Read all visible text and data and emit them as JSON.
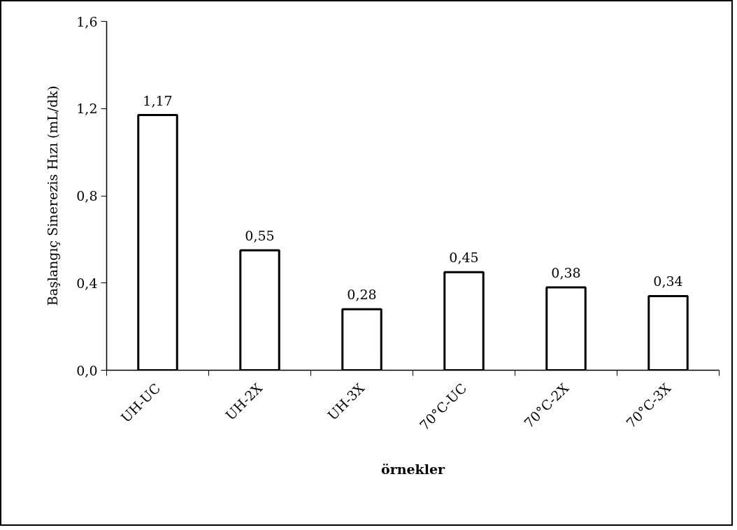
{
  "chart_data": {
    "type": "bar",
    "xlabel": "örnekler",
    "ylabel": "Başlangıç Sinerezis Hızı (mL/dk)",
    "categories": [
      "UH-UC",
      "UH-2X",
      "UH-3X",
      "70°C-UC",
      "70°C-2X",
      "70°C-3X"
    ],
    "values": [
      1.17,
      0.55,
      0.28,
      0.45,
      0.38,
      0.34
    ],
    "value_labels": [
      "1,17",
      "0,55",
      "0,28",
      "0,45",
      "0,38",
      "0,34"
    ],
    "color": "#ffffff",
    "ylim": [
      0,
      1.6
    ],
    "yticks": [
      {
        "value": 0,
        "label": "0,0"
      },
      {
        "value": 0.4,
        "label": "0,4"
      },
      {
        "value": 0.8,
        "label": "0,8"
      },
      {
        "value": 1.2,
        "label": "1,2"
      },
      {
        "value": 1.6,
        "label": "1,6"
      }
    ],
    "grid": false
  }
}
